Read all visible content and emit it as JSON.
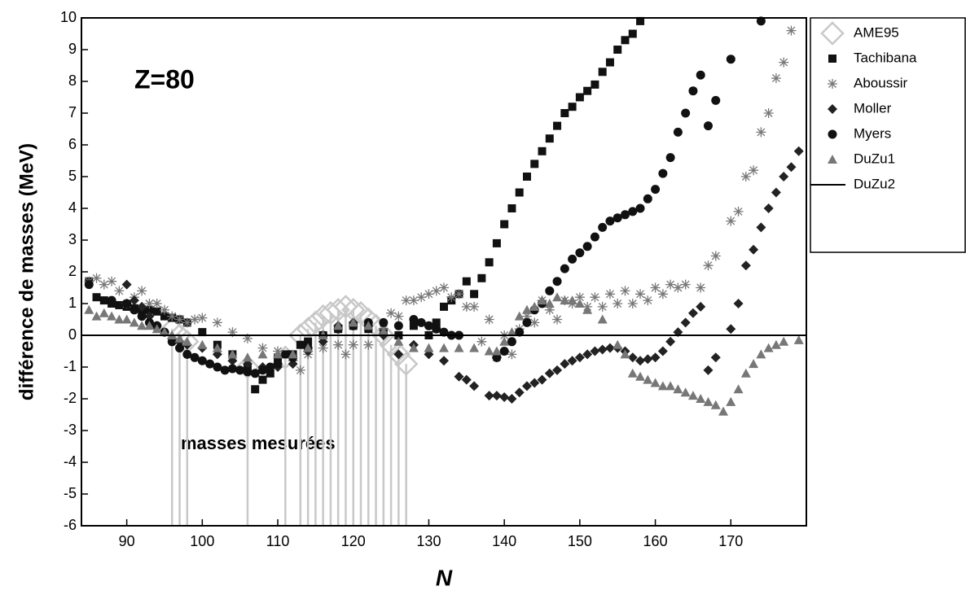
{
  "chart_data": {
    "type": "scatter",
    "annotations": [
      "Z=80",
      "masses mesurées"
    ],
    "xlabel": "N",
    "ylabel": "différence de masses  (MeV)",
    "xlim": [
      84,
      180
    ],
    "xticks": [
      90,
      100,
      110,
      120,
      130,
      140,
      150,
      160,
      170
    ],
    "ylim": [
      -6,
      10
    ],
    "yticks": [
      -6,
      -5,
      -4,
      -3,
      -2,
      -1,
      0,
      1,
      2,
      3,
      4,
      5,
      6,
      7,
      8,
      9,
      10
    ],
    "legend": "right",
    "series": [
      {
        "name": "AME95",
        "color": "#c8c8c8",
        "marker": "diamond-open",
        "droplines": true,
        "x": [
          96,
          97,
          98,
          106,
          111,
          113,
          114,
          115,
          116,
          117,
          118,
          119,
          120,
          121,
          122,
          123,
          124,
          125,
          126,
          127
        ],
        "values": [
          0.2,
          0,
          -0.2,
          -1,
          -0.7,
          0,
          0.2,
          0.4,
          0.6,
          0.7,
          0.8,
          0.9,
          0.8,
          0.7,
          0.5,
          0.3,
          0,
          -0.3,
          -0.6,
          -0.9
        ]
      },
      {
        "name": "Tachibana",
        "color": "#111111",
        "marker": "square",
        "x": [
          85,
          86,
          87,
          88,
          89,
          90,
          91,
          92,
          93,
          94,
          95,
          96,
          97,
          98,
          100,
          102,
          104,
          106,
          107,
          108,
          109,
          110,
          111,
          112,
          113,
          114,
          116,
          118,
          120,
          122,
          124,
          126,
          128,
          130,
          131,
          132,
          133,
          134,
          135,
          136,
          137,
          138,
          139,
          140,
          141,
          142,
          143,
          144,
          145,
          146,
          147,
          148,
          149,
          150,
          151,
          152,
          153,
          154,
          155,
          156,
          157,
          158
        ],
        "values": [
          1.7,
          1.2,
          1.1,
          1,
          0.95,
          0.9,
          0.85,
          0.8,
          0.8,
          0.75,
          0.6,
          0.55,
          0.5,
          0.4,
          0.1,
          -0.3,
          -0.6,
          -1,
          -1.7,
          -1.4,
          -1.2,
          -0.7,
          -0.6,
          -0.6,
          -0.3,
          -0.2,
          0,
          0.2,
          0.3,
          0.2,
          0.1,
          0,
          0.3,
          0,
          0.4,
          0.9,
          1.1,
          1.3,
          1.7,
          1.3,
          1.8,
          2.3,
          2.9,
          3.5,
          4,
          4.5,
          5,
          5.4,
          5.8,
          6.2,
          6.6,
          7,
          7.2,
          7.5,
          7.7,
          7.9,
          8.3,
          8.6,
          9,
          9.3,
          9.5,
          9.9
        ]
      },
      {
        "name": "Aboussir",
        "color": "#777777",
        "marker": "asterisk",
        "x": [
          85,
          86,
          87,
          88,
          89,
          90,
          91,
          92,
          93,
          94,
          95,
          96,
          97,
          98,
          99,
          100,
          102,
          104,
          106,
          108,
          110,
          112,
          113,
          114,
          116,
          118,
          119,
          120,
          122,
          124,
          125,
          126,
          127,
          128,
          129,
          130,
          131,
          132,
          133,
          134,
          135,
          136,
          137,
          138,
          139,
          140,
          141,
          142,
          143,
          144,
          145,
          146,
          147,
          148,
          149,
          150,
          151,
          152,
          153,
          154,
          155,
          156,
          157,
          158,
          159,
          160,
          161,
          162,
          163,
          164,
          166,
          167,
          168,
          170,
          171,
          172,
          173,
          174,
          175,
          176,
          177,
          178
        ],
        "values": [
          1.7,
          1.8,
          1.6,
          1.7,
          1.4,
          1,
          1.2,
          1.4,
          1,
          1,
          0.8,
          0.6,
          0.5,
          0.4,
          0.5,
          0.55,
          0.4,
          0.1,
          -0.1,
          -0.4,
          -0.5,
          -0.8,
          -1.1,
          -0.6,
          -0.4,
          -0.3,
          -0.6,
          -0.3,
          -0.3,
          0.2,
          0.7,
          0.6,
          1.1,
          1.1,
          1.2,
          1.3,
          1.4,
          1.5,
          1.2,
          1.3,
          0.9,
          0.9,
          -0.2,
          0.5,
          -0.7,
          0,
          -0.6,
          0.2,
          0.6,
          0.4,
          1.1,
          0.8,
          0.5,
          1.1,
          1,
          1.2,
          0.9,
          1.2,
          0.9,
          1.3,
          1,
          1.4,
          1,
          1.3,
          1.1,
          1.5,
          1.3,
          1.6,
          1.5,
          1.6,
          1.5,
          2.2,
          2.5,
          3.6,
          3.9,
          5,
          5.2,
          6.4,
          7,
          8.1,
          8.6,
          9.6
        ]
      },
      {
        "name": "Moller",
        "color": "#222222",
        "marker": "diamond",
        "x": [
          90,
          91,
          92,
          93,
          94,
          95,
          96,
          97,
          98,
          100,
          102,
          104,
          106,
          108,
          110,
          112,
          114,
          116,
          118,
          120,
          122,
          124,
          126,
          128,
          130,
          132,
          134,
          135,
          136,
          138,
          139,
          140,
          141,
          142,
          143,
          144,
          145,
          146,
          147,
          148,
          149,
          150,
          151,
          152,
          153,
          154,
          155,
          156,
          157,
          158,
          159,
          160,
          161,
          162,
          163,
          164,
          165,
          166,
          167,
          168,
          170,
          171,
          172,
          173,
          174,
          175,
          176,
          177,
          178,
          179
        ],
        "values": [
          1.6,
          1.1,
          0.9,
          0.6,
          0.3,
          0.1,
          -0.1,
          -0.2,
          -0.3,
          -0.4,
          -0.6,
          -0.8,
          -0.9,
          -1,
          -1,
          -0.9,
          -0.5,
          -0.2,
          0.3,
          0.4,
          0.3,
          0,
          -0.6,
          -0.3,
          -0.6,
          -0.8,
          -1.3,
          -1.4,
          -1.6,
          -1.9,
          -1.9,
          -1.95,
          -2,
          -1.8,
          -1.6,
          -1.5,
          -1.4,
          -1.2,
          -1.1,
          -0.9,
          -0.8,
          -0.7,
          -0.6,
          -0.5,
          -0.45,
          -0.4,
          -0.4,
          -0.5,
          -0.7,
          -0.8,
          -0.75,
          -0.7,
          -0.5,
          -0.2,
          0.1,
          0.4,
          0.7,
          0.9,
          -1.1,
          -0.7,
          0.2,
          1,
          2.2,
          2.7,
          3.4,
          4,
          4.5,
          5,
          5.3,
          5.8
        ]
      },
      {
        "name": "Myers",
        "color": "#111111",
        "marker": "circle",
        "x": [
          85,
          88,
          90,
          91,
          92,
          93,
          94,
          95,
          96,
          97,
          98,
          99,
          100,
          101,
          102,
          103,
          104,
          105,
          106,
          107,
          108,
          109,
          110,
          112,
          114,
          116,
          118,
          120,
          122,
          124,
          126,
          128,
          129,
          130,
          131,
          132,
          133,
          134,
          139,
          140,
          141,
          142,
          143,
          144,
          145,
          146,
          147,
          148,
          149,
          150,
          151,
          152,
          153,
          154,
          155,
          156,
          157,
          158,
          159,
          160,
          161,
          162,
          163,
          164,
          165,
          166,
          167,
          168,
          170,
          174
        ],
        "values": [
          1.6,
          1.1,
          1,
          0.8,
          0.6,
          0.4,
          0.3,
          0.1,
          -0.2,
          -0.4,
          -0.6,
          -0.7,
          -0.8,
          -0.9,
          -1,
          -1.1,
          -1.05,
          -1.1,
          -1.15,
          -1.2,
          -1.1,
          -1,
          -0.9,
          -0.7,
          -0.4,
          0,
          0.2,
          0.3,
          0.4,
          0.4,
          0.3,
          0.5,
          0.4,
          0.3,
          0.2,
          0.1,
          0,
          0,
          -0.7,
          -0.5,
          -0.2,
          0.1,
          0.4,
          0.8,
          1,
          1.4,
          1.7,
          2.1,
          2.4,
          2.6,
          2.8,
          3.1,
          3.4,
          3.6,
          3.7,
          3.8,
          3.9,
          4,
          4.3,
          4.6,
          5.1,
          5.6,
          6.4,
          7,
          7.7,
          8.2,
          6.6,
          7.4,
          8.7,
          9.9
        ]
      },
      {
        "name": "DuZu1",
        "color": "#777777",
        "marker": "triangle",
        "x": [
          85,
          86,
          87,
          88,
          89,
          90,
          91,
          92,
          93,
          94,
          95,
          96,
          97,
          98,
          100,
          102,
          104,
          106,
          108,
          110,
          112,
          114,
          116,
          118,
          120,
          122,
          124,
          126,
          128,
          130,
          132,
          134,
          136,
          138,
          139,
          140,
          141,
          142,
          143,
          144,
          145,
          146,
          147,
          148,
          149,
          150,
          151,
          153,
          155,
          156,
          157,
          158,
          159,
          160,
          161,
          162,
          163,
          164,
          165,
          166,
          167,
          168,
          169,
          170,
          171,
          172,
          173,
          174,
          175,
          176,
          177,
          179
        ],
        "values": [
          0.8,
          0.6,
          0.7,
          0.6,
          0.5,
          0.5,
          0.4,
          0.3,
          0.3,
          0.2,
          0.1,
          0,
          -0.1,
          -0.2,
          -0.3,
          -0.4,
          -0.6,
          -0.7,
          -0.6,
          -0.6,
          -0.6,
          -0.4,
          0,
          0.3,
          0.4,
          0.3,
          0.1,
          -0.2,
          -0.4,
          -0.4,
          -0.4,
          -0.4,
          -0.4,
          -0.5,
          -0.5,
          -0.2,
          0.1,
          0.6,
          0.8,
          0.9,
          1.1,
          1,
          1.2,
          1.1,
          1.1,
          1,
          0.8,
          0.5,
          -0.3,
          -0.6,
          -1.2,
          -1.3,
          -1.4,
          -1.5,
          -1.6,
          -1.6,
          -1.7,
          -1.8,
          -1.9,
          -2,
          -2.1,
          -2.2,
          -2.4,
          -2.1,
          -1.7,
          -1.2,
          -0.9,
          -0.6,
          -0.4,
          -0.3,
          -0.2,
          -0.15
        ]
      },
      {
        "name": "DuZu2",
        "color": "#000000",
        "marker": "line",
        "x": [
          84,
          180
        ],
        "values": [
          0,
          0
        ]
      }
    ]
  }
}
